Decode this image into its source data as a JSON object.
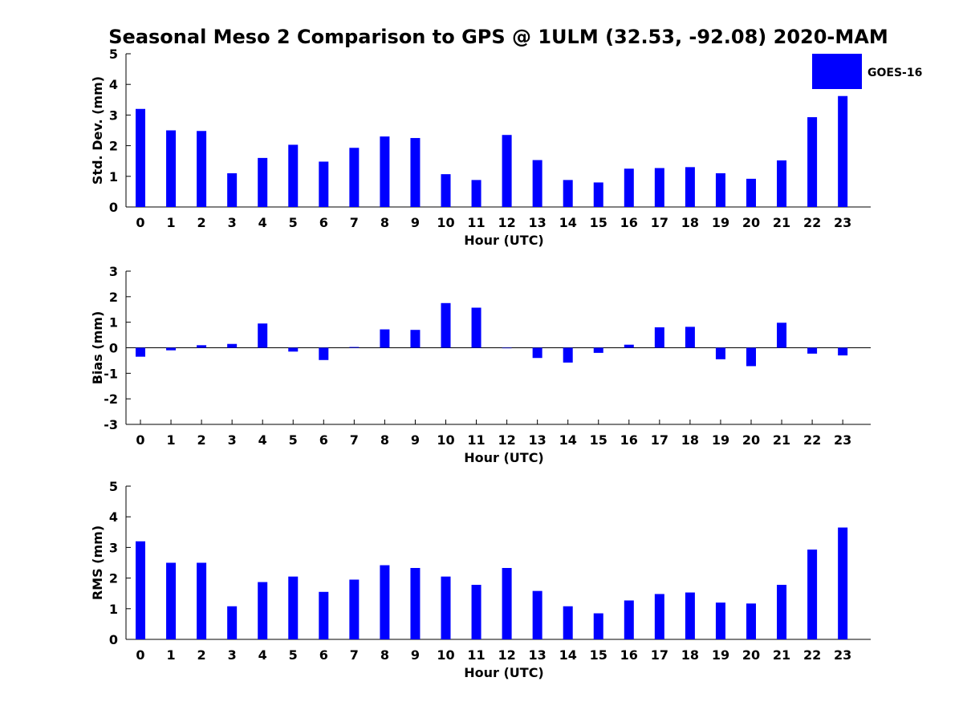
{
  "title": "Seasonal Meso 2 Comparison to GPS @ 1ULM (32.53, -92.08) 2020-MAM",
  "bar_color": "#0000ff",
  "legend": {
    "label": "GOES-16",
    "placement": "top-right"
  },
  "chart_data": [
    {
      "type": "bar",
      "xlabel": "Hour (UTC)",
      "ylabel": "Std. Dev. (mm)",
      "ylim": [
        0,
        5
      ],
      "yticks": [
        0,
        1,
        2,
        3,
        4,
        5
      ],
      "categories": [
        "0",
        "1",
        "2",
        "3",
        "4",
        "5",
        "6",
        "7",
        "8",
        "9",
        "10",
        "11",
        "12",
        "13",
        "14",
        "15",
        "16",
        "17",
        "18",
        "19",
        "20",
        "21",
        "22",
        "23"
      ],
      "series": [
        {
          "name": "GOES-16",
          "values": [
            3.2,
            2.5,
            2.48,
            1.1,
            1.6,
            2.03,
            1.48,
            1.93,
            2.3,
            2.25,
            1.07,
            0.88,
            2.35,
            1.53,
            0.88,
            0.8,
            1.25,
            1.27,
            1.3,
            1.1,
            0.92,
            1.52,
            2.93,
            3.62
          ]
        }
      ],
      "grid": false
    },
    {
      "type": "bar",
      "xlabel": "Hour (UTC)",
      "ylabel": "Bias (mm)",
      "ylim": [
        -3,
        3
      ],
      "yticks": [
        -3,
        -2,
        -1,
        0,
        1,
        2,
        3
      ],
      "categories": [
        "0",
        "1",
        "2",
        "3",
        "4",
        "5",
        "6",
        "7",
        "8",
        "9",
        "10",
        "11",
        "12",
        "13",
        "14",
        "15",
        "16",
        "17",
        "18",
        "19",
        "20",
        "21",
        "22",
        "23"
      ],
      "series": [
        {
          "name": "GOES-16",
          "values": [
            -0.35,
            -0.1,
            0.1,
            0.15,
            0.95,
            -0.15,
            -0.48,
            0.03,
            0.72,
            0.7,
            1.75,
            1.57,
            -0.02,
            -0.4,
            -0.58,
            -0.2,
            0.12,
            0.8,
            0.82,
            -0.45,
            -0.72,
            0.98,
            -0.23,
            -0.3
          ]
        }
      ],
      "zero_line": true,
      "grid": false
    },
    {
      "type": "bar",
      "xlabel": "Hour (UTC)",
      "ylabel": "RMS (mm)",
      "ylim": [
        0,
        5
      ],
      "yticks": [
        0,
        1,
        2,
        3,
        4,
        5
      ],
      "categories": [
        "0",
        "1",
        "2",
        "3",
        "4",
        "5",
        "6",
        "7",
        "8",
        "9",
        "10",
        "11",
        "12",
        "13",
        "14",
        "15",
        "16",
        "17",
        "18",
        "19",
        "20",
        "21",
        "22",
        "23"
      ],
      "series": [
        {
          "name": "GOES-16",
          "values": [
            3.2,
            2.5,
            2.5,
            1.08,
            1.87,
            2.05,
            1.55,
            1.95,
            2.42,
            2.33,
            2.05,
            1.78,
            2.33,
            1.58,
            1.08,
            0.85,
            1.27,
            1.48,
            1.53,
            1.2,
            1.17,
            1.78,
            2.93,
            3.65
          ]
        }
      ],
      "grid": false
    }
  ]
}
